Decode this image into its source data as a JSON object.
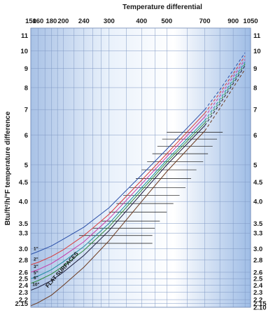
{
  "chart_data": {
    "type": "line",
    "title": "Temperature differential",
    "ylabel": "Btu/ft²/h/°F temperature difference",
    "x_axis": {
      "scale": "log",
      "range": [
        150,
        1050
      ],
      "tick_labels": [
        "150",
        "160",
        "180",
        "200",
        "240",
        "300",
        "400",
        "500",
        "700",
        "900",
        "1050"
      ],
      "tick_values": [
        150,
        160,
        180,
        200,
        240,
        300,
        400,
        500,
        700,
        900,
        1050
      ],
      "minor_grid": [
        170,
        190,
        220,
        260,
        280,
        350,
        450,
        600,
        800,
        1000
      ]
    },
    "y_axis": {
      "scale": "log",
      "range": [
        2.1,
        11.5
      ],
      "tick_values": [
        2.1,
        2.15,
        2.2,
        2.3,
        2.4,
        2.5,
        2.6,
        2.8,
        3.0,
        3.3,
        3.5,
        4.0,
        4.5,
        5,
        6,
        7,
        8,
        9,
        10,
        11
      ],
      "left_labels": [
        "2.15",
        "2.2",
        "2.3",
        "2.4",
        "2.5",
        "2.6",
        "2.8",
        "3.0",
        "3.3",
        "3.5",
        "4.0",
        "4.5",
        "5",
        "6",
        "7",
        "8",
        "9",
        "10",
        "11"
      ],
      "right_labels": [
        "2.10",
        "2.15",
        "2.2",
        "2.3",
        "2.4",
        "2.5",
        "2.6",
        "2.8",
        "3.0",
        "3.3",
        "3.5",
        "4.0",
        "4.5",
        "5",
        "6",
        "7",
        "8",
        "9",
        "10",
        "11"
      ]
    },
    "grid": true,
    "series": [
      {
        "name": "1\"",
        "color": "#2b4fa8",
        "x": [
          150,
          160,
          180,
          200,
          240,
          300,
          400,
          500,
          700,
          800,
          900,
          1000
        ],
        "y": [
          2.9,
          2.95,
          3.05,
          3.18,
          3.42,
          3.85,
          4.7,
          5.5,
          7.0,
          7.9,
          8.9,
          9.9
        ]
      },
      {
        "name": "2\"",
        "color": "#d83a3a",
        "x": [
          150,
          160,
          180,
          200,
          240,
          300,
          400,
          500,
          700,
          800,
          900,
          1000
        ],
        "y": [
          2.72,
          2.76,
          2.86,
          2.98,
          3.25,
          3.7,
          4.55,
          5.35,
          6.85,
          7.75,
          8.7,
          9.7
        ]
      },
      {
        "name": "3\"",
        "color": "#c73aa8",
        "x": [
          150,
          160,
          180,
          200,
          240,
          300,
          400,
          500,
          700,
          800,
          900,
          1000
        ],
        "y": [
          2.6,
          2.64,
          2.74,
          2.87,
          3.13,
          3.6,
          4.45,
          5.25,
          6.7,
          7.6,
          8.55,
          9.5
        ]
      },
      {
        "name": "5\"",
        "color": "#1e8da0",
        "x": [
          150,
          160,
          180,
          200,
          240,
          300,
          400,
          500,
          700,
          800,
          900,
          1000
        ],
        "y": [
          2.5,
          2.54,
          2.64,
          2.77,
          3.04,
          3.5,
          4.35,
          5.15,
          6.55,
          7.45,
          8.4,
          9.35
        ]
      },
      {
        "name": "6\"",
        "color": "#2f8a3c",
        "x": [
          150,
          160,
          180,
          200,
          240,
          300,
          400,
          500,
          700,
          800,
          900,
          1000
        ],
        "y": [
          2.43,
          2.47,
          2.57,
          2.7,
          2.97,
          3.43,
          4.28,
          5.08,
          6.45,
          7.35,
          8.3,
          9.25
        ]
      },
      {
        "name": "10\"",
        "color": "#1a1a3a",
        "x": [
          150,
          160,
          180,
          200,
          240,
          300,
          400,
          500,
          700,
          800,
          900,
          1000
        ],
        "y": [
          2.33,
          2.37,
          2.47,
          2.6,
          2.88,
          3.35,
          4.2,
          5.0,
          6.35,
          7.25,
          8.2,
          9.15
        ]
      },
      {
        "name": "FLAT SURFACES",
        "color": "#6b3a1f",
        "x": [
          150,
          160,
          180,
          200,
          240,
          300,
          400,
          500,
          700,
          800,
          900,
          1000
        ],
        "y": [
          2.12,
          2.16,
          2.26,
          2.4,
          2.68,
          3.15,
          4.0,
          4.8,
          6.15,
          7.05,
          8.0,
          8.95
        ]
      }
    ],
    "labels": [
      "1\"",
      "2\"",
      "3\"",
      "5\"",
      "6\"",
      "10\"",
      "FLAT SURFACES"
    ],
    "error_bars": [
      {
        "x": [
          250,
          440
        ],
        "y": 3.1
      },
      {
        "x": [
          230,
          440
        ],
        "y": 3.25
      },
      {
        "x": [
          260,
          450
        ],
        "y": 3.4
      },
      {
        "x": [
          280,
          470
        ],
        "y": 3.55
      },
      {
        "x": [
          300,
          500
        ],
        "y": 3.75
      },
      {
        "x": [
          320,
          530
        ],
        "y": 3.95
      },
      {
        "x": [
          340,
          560
        ],
        "y": 4.15
      },
      {
        "x": [
          360,
          590
        ],
        "y": 4.35
      },
      {
        "x": [
          380,
          620
        ],
        "y": 4.6
      },
      {
        "x": [
          400,
          650
        ],
        "y": 4.85
      },
      {
        "x": [
          420,
          690
        ],
        "y": 5.1
      },
      {
        "x": [
          440,
          720
        ],
        "y": 5.35
      },
      {
        "x": [
          460,
          750
        ],
        "y": 5.6
      },
      {
        "x": [
          480,
          780
        ],
        "y": 5.85
      },
      {
        "x": [
          500,
          820
        ],
        "y": 6.1
      }
    ]
  }
}
